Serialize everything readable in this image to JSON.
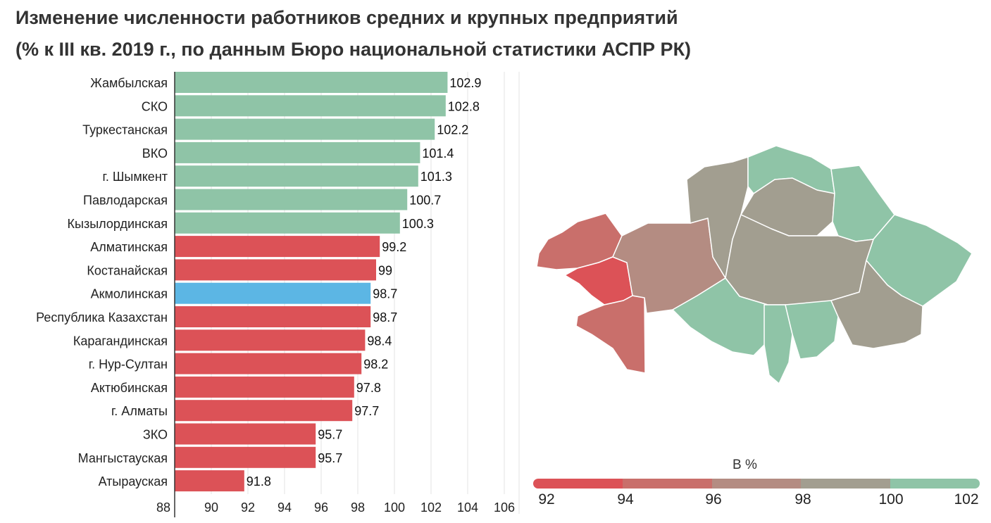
{
  "title_line1": "Изменение численности работников средних и крупных предприятий",
  "title_line2": "(% к III кв. 2019 г., по данным Бюро национальной статистики АСПР РК)",
  "chart_data": {
    "type": "bar",
    "orientation": "horizontal",
    "categories": [
      "Жамбылская",
      "СКО",
      "Туркестанская",
      "ВКО",
      "г. Шымкент",
      "Павлодарская",
      "Кызылординская",
      "Алматинская",
      "Костанайская",
      "Акмолинская",
      "Республика Казахстан",
      "Карагандинская",
      "г. Нур-Султан",
      "Актюбинская",
      "г. Алматы",
      "ЗКО",
      "Мангыстауская",
      "Атырауская"
    ],
    "values": [
      102.9,
      102.8,
      102.2,
      101.4,
      101.3,
      100.7,
      100.3,
      99.2,
      99,
      98.7,
      98.7,
      98.4,
      98.2,
      97.8,
      97.7,
      95.7,
      95.7,
      91.8
    ],
    "value_labels": [
      "102.9",
      "102.8",
      "102.2",
      "101.4",
      "101.3",
      "100.7",
      "100.3",
      "99.2",
      "99",
      "98.7",
      "98.7",
      "98.4",
      "98.2",
      "97.8",
      "97.7",
      "95.7",
      "95.7",
      "91.8"
    ],
    "bar_colors": [
      "#8fc4a7",
      "#8fc4a7",
      "#8fc4a7",
      "#8fc4a7",
      "#8fc4a7",
      "#8fc4a7",
      "#8fc4a7",
      "#dc5257",
      "#dc5257",
      "#5cb6e4",
      "#dc5257",
      "#dc5257",
      "#dc5257",
      "#dc5257",
      "#dc5257",
      "#dc5257",
      "#dc5257",
      "#dc5257"
    ],
    "xlim": [
      88,
      106
    ],
    "xticks": [
      "88",
      "90",
      "92",
      "94",
      "96",
      "98",
      "100",
      "102",
      "104",
      "106"
    ],
    "grid": true
  },
  "legend": {
    "title": "В %",
    "ticks": [
      "92",
      "94",
      "96",
      "98",
      "100",
      "102"
    ],
    "colors": [
      "#dc5257",
      "#c96f6b",
      "#b48c82",
      "#a29e90",
      "#8fc4a7"
    ]
  },
  "map": {
    "regions": [
      {
        "name": "ЗКО",
        "color": "#c96f6b"
      },
      {
        "name": "Атырауская",
        "color": "#dc5257"
      },
      {
        "name": "Мангыстауская",
        "color": "#c96f6b"
      },
      {
        "name": "Актюбинская",
        "color": "#b48c82"
      },
      {
        "name": "Костанайская",
        "color": "#a29e90"
      },
      {
        "name": "СКО",
        "color": "#8fc4a7"
      },
      {
        "name": "Акмолинская",
        "color": "#a29e90"
      },
      {
        "name": "Павлодарская",
        "color": "#8fc4a7"
      },
      {
        "name": "ВКО",
        "color": "#8fc4a7"
      },
      {
        "name": "Карагандинская",
        "color": "#a29e90"
      },
      {
        "name": "Кызылординская",
        "color": "#8fc4a7"
      },
      {
        "name": "Туркестанская",
        "color": "#8fc4a7"
      },
      {
        "name": "Жамбылская",
        "color": "#8fc4a7"
      },
      {
        "name": "Алматинская",
        "color": "#a29e90"
      }
    ]
  }
}
